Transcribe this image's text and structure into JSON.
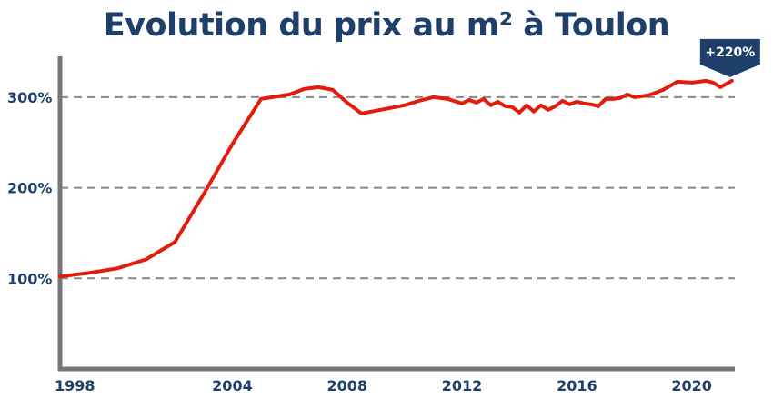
{
  "colors": {
    "title": "#1f3f6b",
    "line": "#e31b0c",
    "axis": "#777777",
    "grid": "#888888",
    "badge": "#1f3f6b"
  },
  "chart_data": {
    "type": "line",
    "title": "Evolution du prix au m² à Toulon",
    "xlabel": "",
    "ylabel": "",
    "xlim": [
      1998,
      2021.5
    ],
    "ylim": [
      0,
      345
    ],
    "x_ticks": [
      1998,
      2004,
      2008,
      2012,
      2016,
      2020
    ],
    "x_tick_labels": [
      "1998",
      "2004",
      "2008",
      "2012",
      "2016",
      "2020"
    ],
    "y_ticks": [
      100,
      200,
      300
    ],
    "y_tick_labels": [
      "100%",
      "200%",
      "300%"
    ],
    "grid": "horizontal dashed",
    "series": [
      {
        "x": [
          1998.0,
          1999.0,
          2000.0,
          2001.0,
          2002.0,
          2003.0,
          2004.0,
          2005.0,
          2006.0,
          2006.5,
          2007.0,
          2007.5,
          2008.0,
          2008.5,
          2009.0,
          2010.0,
          2010.5,
          2011.0,
          2011.5,
          2012.0,
          2012.25,
          2012.5,
          2012.75,
          2013.0,
          2013.25,
          2013.5,
          2013.75,
          2014.0,
          2014.25,
          2014.5,
          2014.75,
          2015.0,
          2015.25,
          2015.5,
          2015.75,
          2016.0,
          2016.25,
          2016.5,
          2016.75,
          2017.0,
          2017.25,
          2017.5,
          2017.75,
          2018.0,
          2018.5,
          2019.0,
          2019.5,
          2020.0,
          2020.5,
          2020.75,
          2021.0,
          2021.4
        ],
        "values": [
          102,
          106,
          111,
          121,
          140,
          193,
          248,
          298,
          303,
          309,
          311,
          308,
          294,
          282,
          285,
          291,
          296,
          300,
          298,
          293,
          297,
          294,
          298,
          291,
          295,
          290,
          289,
          283,
          291,
          284,
          291,
          286,
          290,
          296,
          292,
          295,
          293,
          292,
          290,
          298,
          298,
          299,
          303,
          300,
          302,
          308,
          317,
          316,
          318,
          316,
          311,
          318
        ]
      }
    ],
    "annotation": "+220%"
  }
}
